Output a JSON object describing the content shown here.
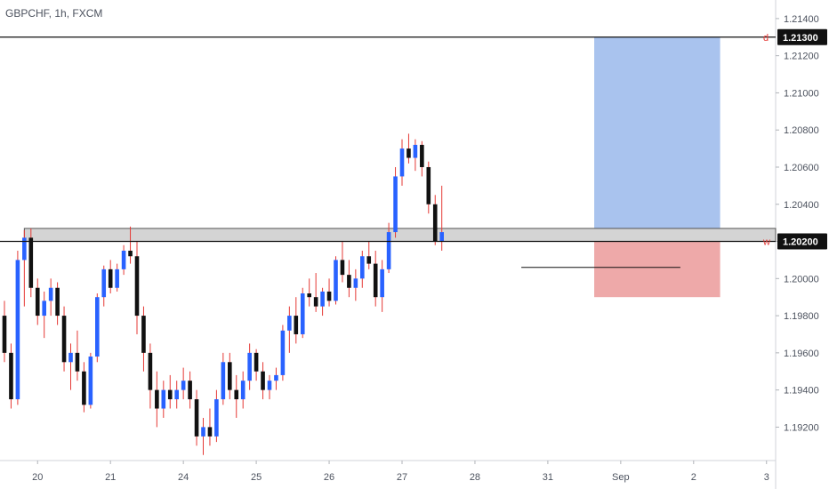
{
  "header": {
    "symbol_label": "GBPCHF, 1h, FXCM"
  },
  "colors": {
    "up": "#2962ff",
    "down": "#111111",
    "wick_up": "#e53935",
    "wick_down": "#e53935",
    "target_zone": "#a9c3ee",
    "stop_zone": "#eea9a9",
    "level_band": "#d4d4d4",
    "axis_text": "#4c525e",
    "badge_bg": "#111111"
  },
  "chart_data": {
    "type": "candlestick",
    "title": "GBPCHF, 1h, FXCM",
    "ylim": [
      1.1902,
      1.215
    ],
    "y_ticks": [
      "1.19200",
      "1.19400",
      "1.19600",
      "1.19800",
      "1.20000",
      "1.20200",
      "1.20400",
      "1.20600",
      "1.20800",
      "1.21000",
      "1.21200",
      "1.21400"
    ],
    "x_ticks": [
      {
        "label": "20",
        "index": 5
      },
      {
        "label": "21",
        "index": 16
      },
      {
        "label": "24",
        "index": 27
      },
      {
        "label": "25",
        "index": 38
      },
      {
        "label": "26",
        "index": 49
      },
      {
        "label": "27",
        "index": 60
      },
      {
        "label": "28",
        "index": 71
      },
      {
        "label": "31",
        "index": 82
      },
      {
        "label": "Sep",
        "index": 93
      },
      {
        "label": "2",
        "index": 104
      },
      {
        "label": "3",
        "index": 115
      }
    ],
    "price_levels": [
      {
        "value": "1.21300",
        "price": 1.213,
        "marker": "d"
      },
      {
        "value": "1.20200",
        "price": 1.202,
        "marker": "w"
      }
    ],
    "level_band": {
      "low": 1.202,
      "high": 1.2027,
      "start_index": 3,
      "end_index": 115
    },
    "position": {
      "start_index": 89,
      "end_index": 108,
      "entry": 1.2027,
      "target": 1.213,
      "stop": 1.199
    },
    "reference_line": {
      "price": 1.2006,
      "start_index": 78,
      "end_index": 102
    },
    "candles": [
      [
        1.198,
        1.1988,
        1.1955,
        1.196
      ],
      [
        1.196,
        1.1965,
        1.193,
        1.1935
      ],
      [
        1.1935,
        1.2015,
        1.1932,
        1.201
      ],
      [
        1.201,
        1.2026,
        1.1985,
        1.2022
      ],
      [
        1.2022,
        1.2027,
        1.199,
        1.1995
      ],
      [
        1.1995,
        1.2,
        1.1975,
        1.198
      ],
      [
        1.198,
        1.1993,
        1.1968,
        1.1988
      ],
      [
        1.1988,
        1.2,
        1.198,
        1.1995
      ],
      [
        1.1995,
        1.1998,
        1.1975,
        1.198
      ],
      [
        1.198,
        1.1985,
        1.195,
        1.1955
      ],
      [
        1.1955,
        1.1965,
        1.194,
        1.196
      ],
      [
        1.196,
        1.1972,
        1.1945,
        1.195
      ],
      [
        1.195,
        1.1955,
        1.1928,
        1.1932
      ],
      [
        1.1932,
        1.196,
        1.193,
        1.1958
      ],
      [
        1.1958,
        1.1992,
        1.1955,
        1.199
      ],
      [
        1.199,
        1.2007,
        1.1985,
        1.2005
      ],
      [
        1.2005,
        1.201,
        1.1992,
        1.1995
      ],
      [
        1.1995,
        1.2008,
        1.1993,
        1.2005
      ],
      [
        1.2005,
        1.2018,
        1.2002,
        1.2015
      ],
      [
        1.2015,
        1.2028,
        1.2008,
        1.2012
      ],
      [
        1.2012,
        1.202,
        1.197,
        1.198
      ],
      [
        1.198,
        1.1985,
        1.195,
        1.196
      ],
      [
        1.196,
        1.1965,
        1.193,
        1.194
      ],
      [
        1.194,
        1.195,
        1.192,
        1.193
      ],
      [
        1.193,
        1.1945,
        1.1925,
        1.194
      ],
      [
        1.194,
        1.1948,
        1.193,
        1.1935
      ],
      [
        1.1935,
        1.1945,
        1.193,
        1.194
      ],
      [
        1.194,
        1.1952,
        1.1935,
        1.1945
      ],
      [
        1.1945,
        1.195,
        1.193,
        1.1935
      ],
      [
        1.1935,
        1.194,
        1.191,
        1.1915
      ],
      [
        1.1915,
        1.1925,
        1.1905,
        1.192
      ],
      [
        1.192,
        1.193,
        1.191,
        1.1915
      ],
      [
        1.1915,
        1.194,
        1.1912,
        1.1935
      ],
      [
        1.1935,
        1.196,
        1.1932,
        1.1955
      ],
      [
        1.1955,
        1.196,
        1.1935,
        1.194
      ],
      [
        1.194,
        1.1948,
        1.1925,
        1.1935
      ],
      [
        1.1935,
        1.195,
        1.193,
        1.1945
      ],
      [
        1.1945,
        1.1965,
        1.194,
        1.196
      ],
      [
        1.196,
        1.1962,
        1.1945,
        1.195
      ],
      [
        1.195,
        1.1955,
        1.1935,
        1.194
      ],
      [
        1.194,
        1.1948,
        1.1935,
        1.1945
      ],
      [
        1.1945,
        1.1952,
        1.194,
        1.1948
      ],
      [
        1.1948,
        1.1975,
        1.1945,
        1.1972
      ],
      [
        1.1972,
        1.1985,
        1.196,
        1.198
      ],
      [
        1.198,
        1.199,
        1.1965,
        1.197
      ],
      [
        1.197,
        1.1995,
        1.1968,
        1.1992
      ],
      [
        1.1992,
        1.2,
        1.1985,
        1.199
      ],
      [
        1.199,
        1.2003,
        1.1982,
        1.1985
      ],
      [
        1.1985,
        1.1995,
        1.198,
        1.1993
      ],
      [
        1.1993,
        1.2,
        1.1985,
        1.1988
      ],
      [
        1.1988,
        1.2012,
        1.1986,
        1.201
      ],
      [
        1.201,
        1.202,
        1.1998,
        1.2002
      ],
      [
        1.2002,
        1.201,
        1.199,
        1.1995
      ],
      [
        1.1995,
        1.2005,
        1.1988,
        1.2
      ],
      [
        1.2,
        1.2015,
        1.1995,
        1.2012
      ],
      [
        1.2012,
        1.202,
        1.2005,
        1.2008
      ],
      [
        1.2008,
        1.2015,
        1.1985,
        1.199
      ],
      [
        1.199,
        1.201,
        1.1982,
        1.2005
      ],
      [
        1.2005,
        1.203,
        1.2003,
        1.2025
      ],
      [
        1.2025,
        1.206,
        1.2022,
        1.2055
      ],
      [
        1.2055,
        1.2075,
        1.205,
        1.207
      ],
      [
        1.207,
        1.2078,
        1.2062,
        1.2065
      ],
      [
        1.2065,
        1.2075,
        1.2058,
        1.2072
      ],
      [
        1.2072,
        1.2074,
        1.2055,
        1.206
      ],
      [
        1.206,
        1.2063,
        1.2035,
        1.204
      ],
      [
        1.204,
        1.2045,
        1.2018,
        1.202
      ],
      [
        1.202,
        1.205,
        1.2015,
        1.2025
      ]
    ]
  }
}
